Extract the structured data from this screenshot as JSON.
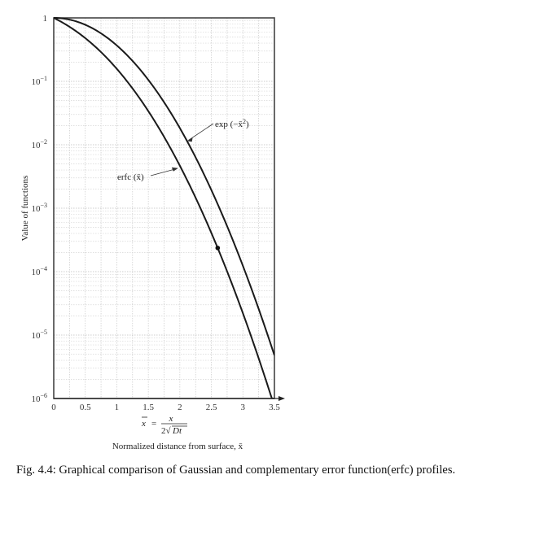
{
  "figure": {
    "caption": "Fig. 4.4:  Graphical comparison of Gaussian and complementary error function(erfc)  profiles."
  },
  "chart_data": {
    "type": "line",
    "title": "",
    "xlabel": "Normalized distance from surface, x̄",
    "x_definition": "x̄ = x / (2√(Dt))",
    "ylabel": "Value of functions",
    "yscale": "log",
    "xlim": [
      0,
      3.5
    ],
    "ylim": [
      1e-06,
      1
    ],
    "grid": true,
    "x_ticks": [
      0,
      0.5,
      1,
      1.5,
      2,
      2.5,
      3,
      3.5
    ],
    "x_tick_labels": [
      "0",
      "0.5",
      "1",
      "1.5",
      "2",
      "2.5",
      "3",
      "3.5"
    ],
    "y_ticks": [
      1,
      0.1,
      0.01,
      0.001,
      0.0001,
      1e-05,
      1e-06
    ],
    "y_tick_labels": [
      {
        "base": "1",
        "exp": ""
      },
      {
        "base": "10",
        "exp": "−1"
      },
      {
        "base": "10",
        "exp": "−2"
      },
      {
        "base": "10",
        "exp": "−3"
      },
      {
        "base": "10",
        "exp": "−4"
      },
      {
        "base": "10",
        "exp": "−5"
      },
      {
        "base": "10",
        "exp": "−6"
      }
    ],
    "x": [
      0,
      0.25,
      0.5,
      0.75,
      1,
      1.25,
      1.5,
      1.75,
      2,
      2.25,
      2.5,
      2.75,
      3,
      3.25,
      3.5
    ],
    "series": [
      {
        "name": "exp(−x̄²)",
        "label": "exp (−x̄²)",
        "values": [
          1,
          0.9394,
          0.7788,
          0.5698,
          0.3679,
          0.2096,
          0.1054,
          0.04677,
          0.01832,
          0.00633,
          0.00193,
          0.0005197,
          0.0001234,
          2.586e-05,
          4.785e-06
        ]
      },
      {
        "name": "erfc(x̄)",
        "label": "erfc (x̄)",
        "values": [
          1,
          0.7237,
          0.4795,
          0.2888,
          0.1573,
          0.0771,
          0.03389,
          0.01333,
          0.004678,
          0.001463,
          0.000407,
          0.0001008,
          2.209e-05,
          4.3e-06,
          7.43e-07
        ]
      }
    ],
    "annotations": [
      {
        "text": "exp (−x̄²)",
        "target_series": 0,
        "at_x": 2.1
      },
      {
        "text": "erfc (x̄)",
        "target_series": 1,
        "at_x": 2.0
      }
    ],
    "marker": {
      "series": 1,
      "x": 2.6,
      "shape": "dot"
    }
  }
}
